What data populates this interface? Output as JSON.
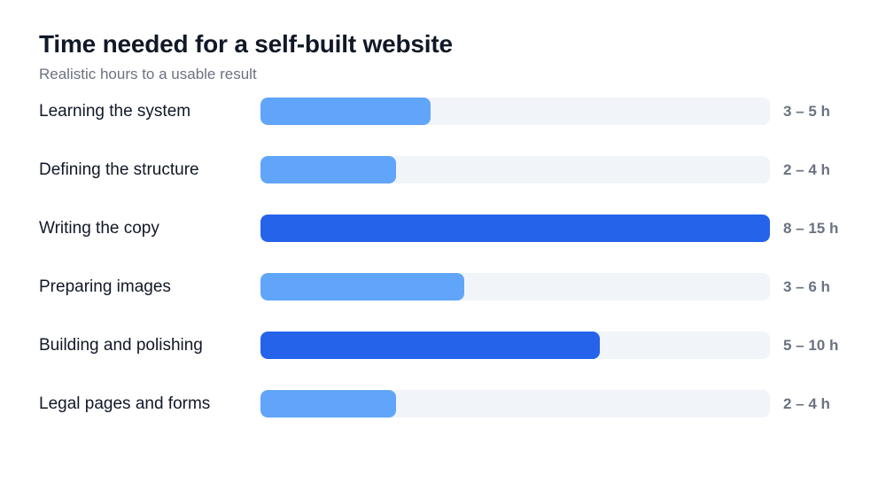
{
  "chart_data": {
    "type": "bar",
    "orientation": "horizontal",
    "title": "Time needed for a self-built website",
    "subtitle": "Realistic hours to a usable result",
    "xlabel": "",
    "ylabel": "",
    "grid": false,
    "unit": "h",
    "categories": [
      "Learning the system",
      "Defining the structure",
      "Writing the copy",
      "Preparing images",
      "Building and polishing",
      "Legal pages and forms"
    ],
    "ranges": [
      [
        3,
        5
      ],
      [
        2,
        4
      ],
      [
        8,
        15
      ],
      [
        3,
        6
      ],
      [
        5,
        10
      ],
      [
        2,
        4
      ]
    ],
    "value_labels": [
      "3 – 5 h",
      "2 – 4 h",
      "8 – 15 h",
      "3 – 6 h",
      "5 – 10 h",
      "2 – 4 h"
    ],
    "xlim": [
      0,
      15
    ],
    "highlight": [
      false,
      false,
      true,
      false,
      true,
      false
    ],
    "colors": {
      "bar": "#60a5fa",
      "highlight": "#2563eb",
      "track": "#f1f4f8"
    }
  }
}
